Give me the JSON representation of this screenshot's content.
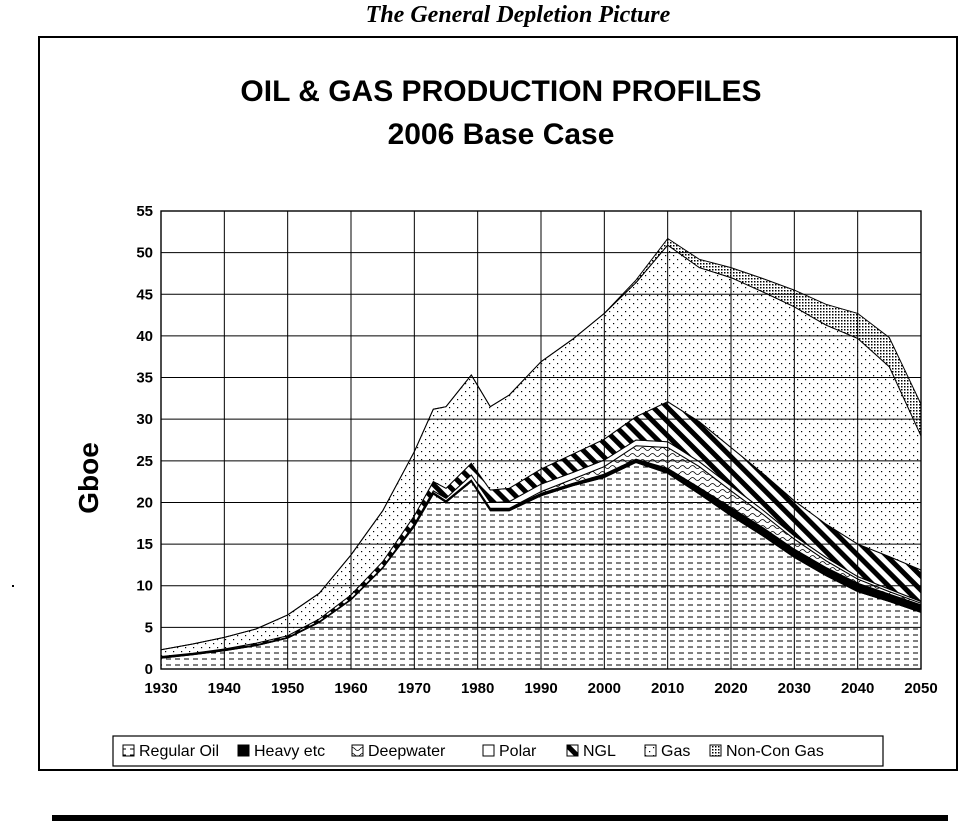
{
  "page": {
    "caption": "The General Depletion Picture"
  },
  "chart_data": {
    "type": "area",
    "stacked": true,
    "title": "OIL & GAS PRODUCTION PROFILES",
    "subtitle": "2006 Base Case",
    "ylabel": "Gboe",
    "xlabel": "",
    "xlim": [
      1930,
      2050
    ],
    "ylim": [
      0,
      55
    ],
    "x_ticks": [
      "1930",
      "1940",
      "1950",
      "1960",
      "1970",
      "1980",
      "1990",
      "2000",
      "2010",
      "2020",
      "2030",
      "2040",
      "2050"
    ],
    "y_ticks": [
      "0",
      "5",
      "10",
      "15",
      "20",
      "25",
      "30",
      "35",
      "40",
      "45",
      "50",
      "55"
    ],
    "grid": true,
    "legend_position": "bottom",
    "x": [
      1930,
      1935,
      1940,
      1945,
      1950,
      1955,
      1960,
      1965,
      1970,
      1973,
      1975,
      1979,
      1982,
      1985,
      1990,
      1995,
      2000,
      2005,
      2010,
      2015,
      2020,
      2025,
      2030,
      2035,
      2040,
      2045,
      2050
    ],
    "series": [
      {
        "name": "Regular Oil",
        "pattern": "dashes",
        "values": [
          1.3,
          1.7,
          2.2,
          2.8,
          3.7,
          5.6,
          8.3,
          12.1,
          17.1,
          21.0,
          20.0,
          22.5,
          19.0,
          19.0,
          20.8,
          22.0,
          23.0,
          24.8,
          23.5,
          21.0,
          18.4,
          16.0,
          13.4,
          11.2,
          9.3,
          8.1,
          6.8
        ]
      },
      {
        "name": "Heavy etc",
        "pattern": "solid-black",
        "values": [
          0.1,
          0.1,
          0.1,
          0.1,
          0.1,
          0.1,
          0.1,
          0.1,
          0.2,
          0.2,
          0.2,
          0.2,
          0.3,
          0.3,
          0.3,
          0.3,
          0.4,
          0.4,
          0.6,
          0.8,
          1.0,
          1.0,
          1.0,
          1.0,
          1.0,
          0.9,
          0.9
        ]
      },
      {
        "name": "Deepwater",
        "pattern": "waves",
        "values": [
          0,
          0,
          0,
          0,
          0,
          0,
          0,
          0,
          0,
          0,
          0,
          0,
          0,
          0,
          0.2,
          0.5,
          0.9,
          1.6,
          2.5,
          2.5,
          2.0,
          1.6,
          1.2,
          0.8,
          0.5,
          0.3,
          0.2
        ]
      },
      {
        "name": "Polar",
        "pattern": "white",
        "values": [
          0,
          0,
          0,
          0,
          0,
          0,
          0,
          0,
          0.1,
          0.2,
          0.3,
          0.6,
          0.7,
          0.8,
          0.9,
          0.8,
          0.8,
          0.7,
          0.7,
          0.6,
          0.6,
          0.5,
          0.4,
          0.4,
          0.3,
          0.3,
          0.2
        ]
      },
      {
        "name": "NGL",
        "pattern": "diagonal-stripes",
        "values": [
          0.1,
          0.1,
          0.1,
          0.2,
          0.2,
          0.3,
          0.5,
          0.7,
          1.0,
          1.1,
          1.2,
          1.4,
          1.5,
          1.6,
          1.8,
          2.2,
          2.5,
          2.8,
          4.8,
          4.8,
          4.6,
          4.4,
          4.2,
          4.0,
          3.9,
          3.9,
          3.8
        ]
      },
      {
        "name": "Gas",
        "pattern": "dots",
        "values": [
          0.8,
          1.1,
          1.4,
          1.7,
          2.5,
          3.1,
          4.8,
          6.1,
          7.7,
          8.7,
          9.8,
          10.6,
          10.0,
          11.2,
          12.9,
          13.8,
          15.1,
          16.1,
          18.8,
          18.5,
          20.4,
          21.8,
          23.3,
          23.9,
          24.7,
          22.8,
          16.1
        ]
      },
      {
        "name": "Non-Con Gas",
        "pattern": "fine-dots",
        "values": [
          0,
          0,
          0,
          0,
          0,
          0,
          0,
          0,
          0,
          0,
          0,
          0,
          0,
          0,
          0,
          0,
          0,
          0.3,
          0.8,
          1.0,
          1.2,
          1.6,
          2.0,
          2.5,
          3.0,
          3.5,
          3.8
        ]
      }
    ]
  }
}
